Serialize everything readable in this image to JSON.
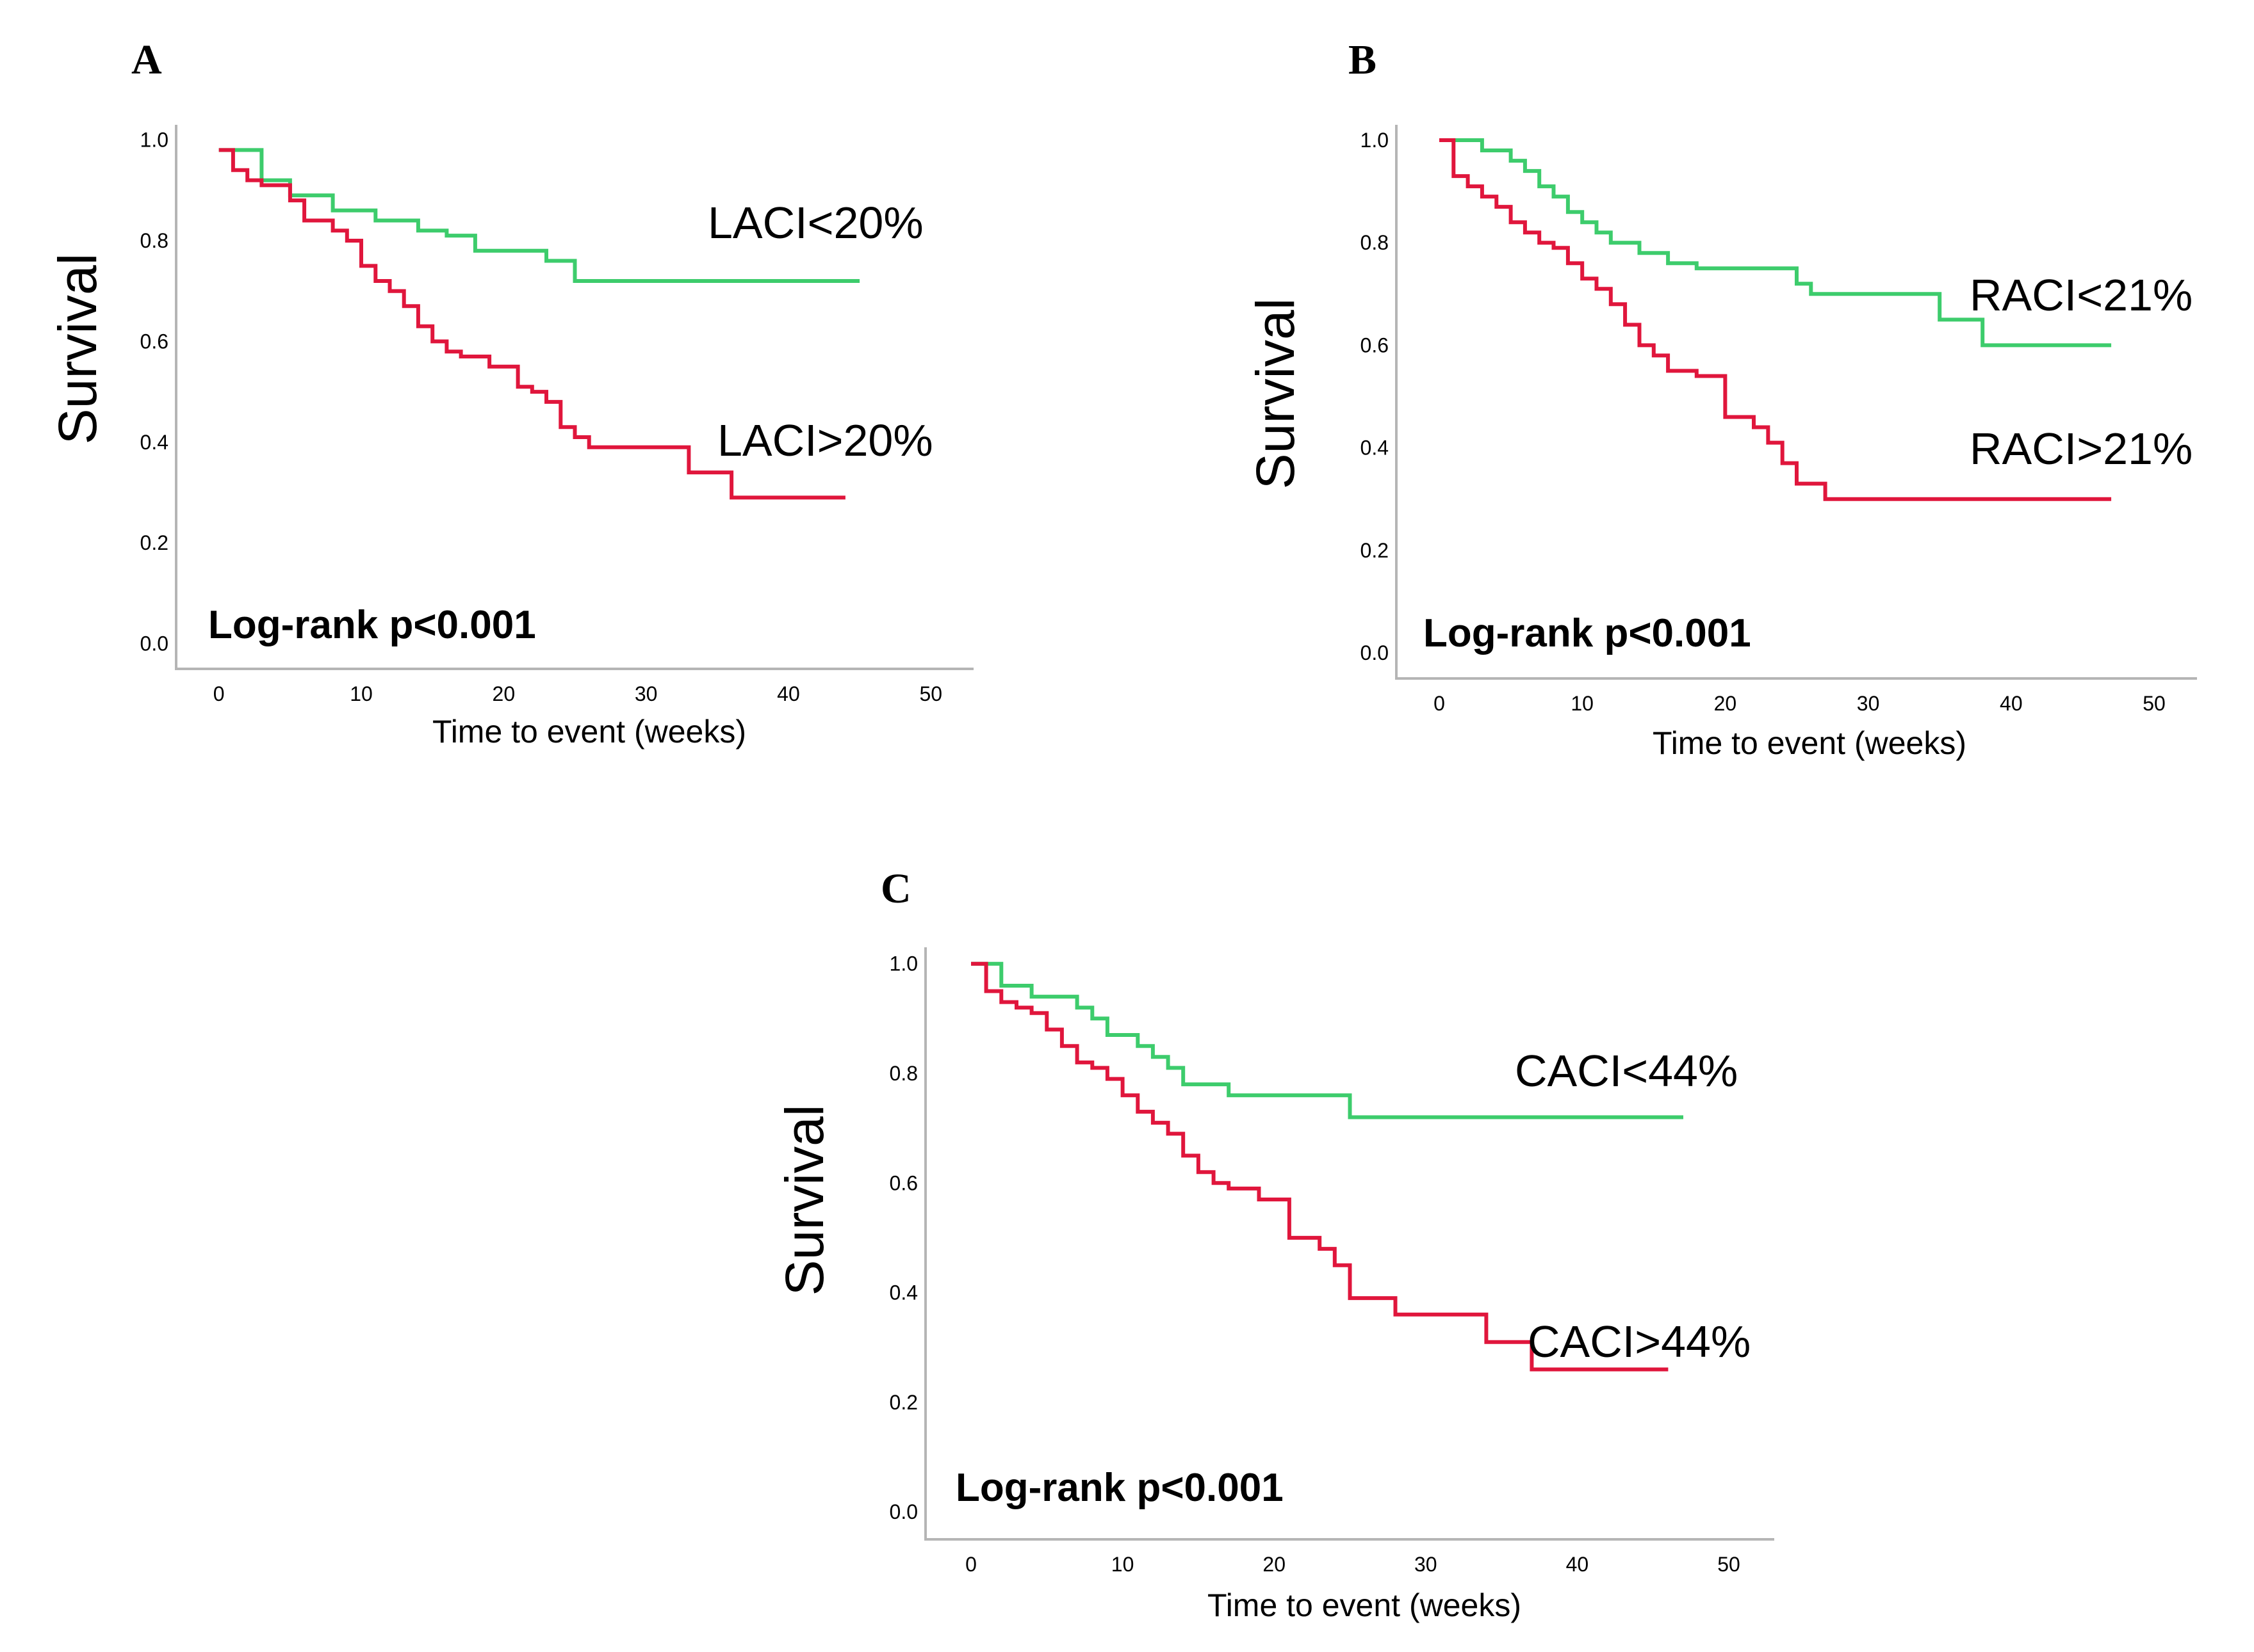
{
  "colors": {
    "low_group": "#3dcc6c",
    "high_group": "#e0163c",
    "axis": "#b5b5b5"
  },
  "chart_data": [
    {
      "type": "line",
      "panel": "A",
      "xlabel": "Time to event (weeks)",
      "ylabel": "Survival",
      "x_ticks": [
        0,
        10,
        20,
        30,
        40,
        50
      ],
      "y_ticks": [
        "0.0",
        "0.2",
        "0.4",
        "0.6",
        "0.8",
        "1.0"
      ],
      "xlim": [
        -3,
        53
      ],
      "ylim": [
        -0.05,
        1.03
      ],
      "annotation": "Log-rank p<0.001",
      "series": [
        {
          "name": "LACI<20%",
          "group": "low",
          "x": [
            0,
            3,
            3,
            5,
            5,
            8,
            8,
            11,
            11,
            14,
            14,
            16,
            16,
            18,
            18,
            23,
            23,
            25,
            25,
            45
          ],
          "y": [
            0.98,
            0.98,
            0.92,
            0.92,
            0.89,
            0.89,
            0.86,
            0.86,
            0.84,
            0.84,
            0.82,
            0.82,
            0.81,
            0.81,
            0.78,
            0.78,
            0.76,
            0.76,
            0.72,
            0.72
          ]
        },
        {
          "name": "LACI>20%",
          "group": "high",
          "x": [
            0,
            1,
            1,
            2,
            2,
            3,
            3,
            5,
            5,
            6,
            6,
            8,
            8,
            9,
            9,
            10,
            10,
            11,
            11,
            12,
            12,
            13,
            13,
            14,
            14,
            15,
            15,
            16,
            16,
            17,
            17,
            19,
            19,
            21,
            21,
            22,
            22,
            23,
            23,
            24,
            24,
            25,
            25,
            26,
            26,
            28,
            28,
            33,
            33,
            36,
            36,
            44
          ],
          "y": [
            0.98,
            0.98,
            0.94,
            0.94,
            0.92,
            0.92,
            0.91,
            0.91,
            0.88,
            0.88,
            0.84,
            0.84,
            0.82,
            0.82,
            0.8,
            0.8,
            0.75,
            0.75,
            0.72,
            0.72,
            0.7,
            0.7,
            0.67,
            0.67,
            0.63,
            0.63,
            0.6,
            0.6,
            0.58,
            0.58,
            0.57,
            0.57,
            0.55,
            0.55,
            0.51,
            0.51,
            0.5,
            0.5,
            0.48,
            0.48,
            0.43,
            0.43,
            0.41,
            0.41,
            0.39,
            0.39,
            0.39,
            0.39,
            0.34,
            0.34,
            0.29,
            0.29
          ]
        }
      ]
    },
    {
      "type": "line",
      "panel": "B",
      "xlabel": "Time to event (weeks)",
      "ylabel": "Survival",
      "x_ticks": [
        0,
        10,
        20,
        30,
        40,
        50
      ],
      "y_ticks": [
        "0.0",
        "0.2",
        "0.4",
        "0.6",
        "0.8",
        "1.0"
      ],
      "xlim": [
        -3,
        53
      ],
      "ylim": [
        -0.05,
        1.03
      ],
      "annotation": "Log-rank p<0.001",
      "series": [
        {
          "name": "RACI<21%",
          "group": "low",
          "x": [
            0,
            3,
            3,
            5,
            5,
            6,
            6,
            7,
            7,
            8,
            8,
            9,
            9,
            10,
            10,
            11,
            11,
            12,
            12,
            14,
            14,
            16,
            16,
            18,
            18,
            25,
            25,
            26,
            26,
            35,
            35,
            38,
            38,
            47
          ],
          "y": [
            1.0,
            1.0,
            0.98,
            0.98,
            0.96,
            0.96,
            0.94,
            0.94,
            0.91,
            0.91,
            0.89,
            0.89,
            0.86,
            0.86,
            0.84,
            0.84,
            0.82,
            0.82,
            0.8,
            0.8,
            0.78,
            0.78,
            0.76,
            0.76,
            0.75,
            0.75,
            0.72,
            0.72,
            0.7,
            0.7,
            0.65,
            0.65,
            0.6,
            0.6
          ]
        },
        {
          "name": "RACI>21%",
          "group": "high",
          "x": [
            0,
            1,
            1,
            2,
            2,
            3,
            3,
            4,
            4,
            5,
            5,
            6,
            6,
            7,
            7,
            8,
            8,
            9,
            9,
            10,
            10,
            11,
            11,
            12,
            12,
            13,
            13,
            14,
            14,
            15,
            15,
            16,
            16,
            18,
            18,
            20,
            20,
            22,
            22,
            23,
            23,
            24,
            24,
            25,
            25,
            27,
            27,
            47
          ],
          "y": [
            1.0,
            1.0,
            0.93,
            0.93,
            0.91,
            0.91,
            0.89,
            0.89,
            0.87,
            0.87,
            0.84,
            0.84,
            0.82,
            0.82,
            0.8,
            0.8,
            0.79,
            0.79,
            0.76,
            0.76,
            0.73,
            0.73,
            0.71,
            0.71,
            0.68,
            0.68,
            0.64,
            0.64,
            0.6,
            0.6,
            0.58,
            0.58,
            0.55,
            0.55,
            0.54,
            0.54,
            0.46,
            0.46,
            0.44,
            0.44,
            0.41,
            0.41,
            0.37,
            0.37,
            0.33,
            0.33,
            0.3,
            0.3
          ]
        }
      ]
    },
    {
      "type": "line",
      "panel": "C",
      "xlabel": "Time to event (weeks)",
      "ylabel": "Survival",
      "x_ticks": [
        0,
        10,
        20,
        30,
        40,
        50
      ],
      "y_ticks": [
        "0.0",
        "0.2",
        "0.4",
        "0.6",
        "0.8",
        "1.0"
      ],
      "xlim": [
        -3,
        53
      ],
      "ylim": [
        -0.05,
        1.03
      ],
      "annotation": "Log-rank p<0.001",
      "series": [
        {
          "name": "CACI<44%",
          "group": "low",
          "x": [
            0,
            2,
            2,
            4,
            4,
            7,
            7,
            8,
            8,
            9,
            9,
            11,
            11,
            12,
            12,
            13,
            13,
            14,
            14,
            17,
            17,
            25,
            25,
            47
          ],
          "y": [
            1.0,
            1.0,
            0.96,
            0.96,
            0.94,
            0.94,
            0.92,
            0.92,
            0.9,
            0.9,
            0.87,
            0.87,
            0.85,
            0.85,
            0.83,
            0.83,
            0.81,
            0.81,
            0.78,
            0.78,
            0.76,
            0.76,
            0.72,
            0.72
          ]
        },
        {
          "name": "CACI>44%",
          "group": "high",
          "x": [
            0,
            1,
            1,
            2,
            2,
            3,
            3,
            4,
            4,
            5,
            5,
            6,
            6,
            7,
            7,
            8,
            8,
            9,
            9,
            10,
            10,
            11,
            11,
            12,
            12,
            13,
            13,
            14,
            14,
            15,
            15,
            16,
            16,
            17,
            17,
            19,
            19,
            21,
            21,
            23,
            23,
            24,
            24,
            25,
            25,
            28,
            28,
            34,
            34,
            37,
            37,
            46
          ],
          "y": [
            1.0,
            1.0,
            0.95,
            0.95,
            0.93,
            0.93,
            0.92,
            0.92,
            0.91,
            0.91,
            0.88,
            0.88,
            0.85,
            0.85,
            0.82,
            0.82,
            0.81,
            0.81,
            0.79,
            0.79,
            0.76,
            0.76,
            0.73,
            0.73,
            0.71,
            0.71,
            0.69,
            0.69,
            0.65,
            0.65,
            0.62,
            0.62,
            0.6,
            0.6,
            0.59,
            0.59,
            0.57,
            0.57,
            0.5,
            0.5,
            0.48,
            0.48,
            0.45,
            0.45,
            0.39,
            0.39,
            0.36,
            0.36,
            0.31,
            0.31,
            0.26,
            0.26
          ]
        }
      ]
    }
  ]
}
